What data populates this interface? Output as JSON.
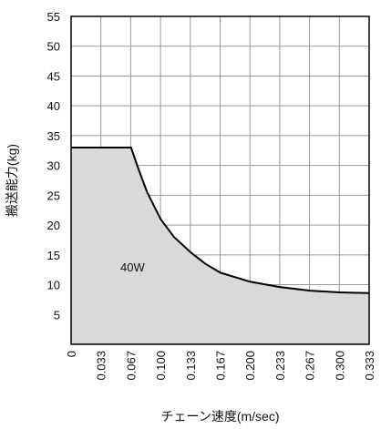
{
  "chart_data": {
    "type": "area",
    "xlabel": "チェーン速度(m/sec)",
    "ylabel": "搬送能力(kg)",
    "x_ticks": [
      "0",
      "0.033",
      "0.067",
      "0.100",
      "0.133",
      "0.167",
      "0.200",
      "0.233",
      "0.267",
      "0.300",
      "0.333"
    ],
    "y_ticks": [
      "5",
      "10",
      "15",
      "20",
      "25",
      "30",
      "35",
      "40",
      "45",
      "50",
      "55"
    ],
    "xlim": [
      0,
      0.333
    ],
    "ylim": [
      0,
      55
    ],
    "grid": true,
    "series": [
      {
        "name": "",
        "fill_color": "#d9d9d9",
        "line_color": "#000000",
        "x": [
          0,
          0.033,
          0.067,
          0.075,
          0.085,
          0.1,
          0.115,
          0.133,
          0.15,
          0.167,
          0.2,
          0.233,
          0.267,
          0.3,
          0.333
        ],
        "y": [
          33,
          33,
          33,
          29.5,
          25.5,
          21,
          18,
          15.5,
          13.5,
          12,
          10.5,
          9.6,
          9,
          8.7,
          8.6
        ]
      }
    ],
    "annotations": [
      {
        "text": "40W",
        "x": 0.055,
        "y": 12.2
      }
    ]
  }
}
